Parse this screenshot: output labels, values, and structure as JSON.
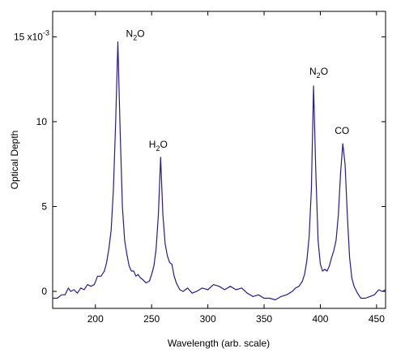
{
  "chart_data": {
    "type": "line",
    "title": "",
    "xlabel": "Wavelength (arb. scale)",
    "ylabel": "Optical Depth",
    "xlim": [
      162,
      458
    ],
    "ylim": [
      -0.001,
      0.0165
    ],
    "x_ticks": [
      200,
      250,
      300,
      350,
      400,
      450
    ],
    "y_ticks": [
      {
        "value": 0,
        "label": "0"
      },
      {
        "value": 0.005,
        "label": "5"
      },
      {
        "value": 0.01,
        "label": "10"
      },
      {
        "value": 0.015,
        "label": "15 x10",
        "exponent": "-3"
      }
    ],
    "grid": false,
    "line_color": "#2b1a8a",
    "annotations": [
      {
        "text": "N",
        "sub": "2",
        "tail": "O",
        "x": 220,
        "y": 0.0148
      },
      {
        "text": "H",
        "sub": "2",
        "tail": "O",
        "x": 258,
        "y": 0.0079
      },
      {
        "text": "N",
        "sub": "2",
        "tail": "O",
        "x": 395,
        "y": 0.0122
      },
      {
        "text": "CO",
        "sub": "",
        "tail": "",
        "x": 420,
        "y": 0.0087
      }
    ],
    "series": [
      {
        "x": [
          162,
          166,
          170,
          173,
          176,
          178,
          181,
          184,
          187,
          190,
          193,
          196,
          199,
          202,
          205,
          208,
          210,
          212,
          214,
          216,
          218,
          220,
          222,
          224,
          226,
          228,
          230,
          232,
          234,
          236,
          238,
          240,
          242,
          245,
          248,
          250,
          252,
          254,
          256,
          258,
          260,
          262,
          264,
          266,
          268,
          270,
          272,
          275,
          278,
          282,
          286,
          290,
          295,
          300,
          305,
          310,
          315,
          320,
          325,
          330,
          335,
          340,
          345,
          350,
          355,
          360,
          365,
          370,
          375,
          378,
          381,
          384,
          386,
          388,
          390,
          392,
          394,
          396,
          398,
          400,
          402,
          404,
          406,
          408,
          410,
          412,
          414,
          416,
          418,
          420,
          422,
          424,
          426,
          428,
          430,
          433,
          436,
          440,
          444,
          448,
          452,
          455,
          458
        ],
        "y": [
          -0.0004,
          -0.0004,
          -0.0002,
          -0.0002,
          0.0002,
          0.0,
          0.0001,
          -0.0001,
          0.0002,
          0.0001,
          0.0004,
          0.0003,
          0.0004,
          0.0009,
          0.0009,
          0.0012,
          0.0017,
          0.0025,
          0.0036,
          0.006,
          0.01,
          0.0147,
          0.0095,
          0.005,
          0.003,
          0.0022,
          0.0015,
          0.0012,
          0.0012,
          0.0009,
          0.001,
          0.0008,
          0.0007,
          0.0005,
          0.0006,
          0.001,
          0.0015,
          0.0025,
          0.0045,
          0.0079,
          0.0045,
          0.0028,
          0.0021,
          0.0017,
          0.0016,
          0.0009,
          0.0005,
          0.0001,
          0.0,
          0.0002,
          -0.0001,
          0.0,
          0.0002,
          0.0001,
          0.0004,
          0.0003,
          0.0001,
          0.0003,
          0.0001,
          0.0002,
          -0.0001,
          -0.0003,
          -0.0002,
          -0.0004,
          -0.0004,
          -0.0005,
          -0.0003,
          -0.0002,
          0.0,
          0.0002,
          0.0003,
          0.0006,
          0.001,
          0.0018,
          0.0032,
          0.006,
          0.0121,
          0.007,
          0.003,
          0.0016,
          0.0012,
          0.0013,
          0.0012,
          0.0015,
          0.002,
          0.0024,
          0.003,
          0.0045,
          0.007,
          0.0087,
          0.0075,
          0.0045,
          0.002,
          0.0008,
          0.0003,
          -0.0001,
          -0.0004,
          -0.0004,
          -0.0003,
          -0.0002,
          0.0001,
          0.0,
          0.0001
        ]
      }
    ]
  }
}
